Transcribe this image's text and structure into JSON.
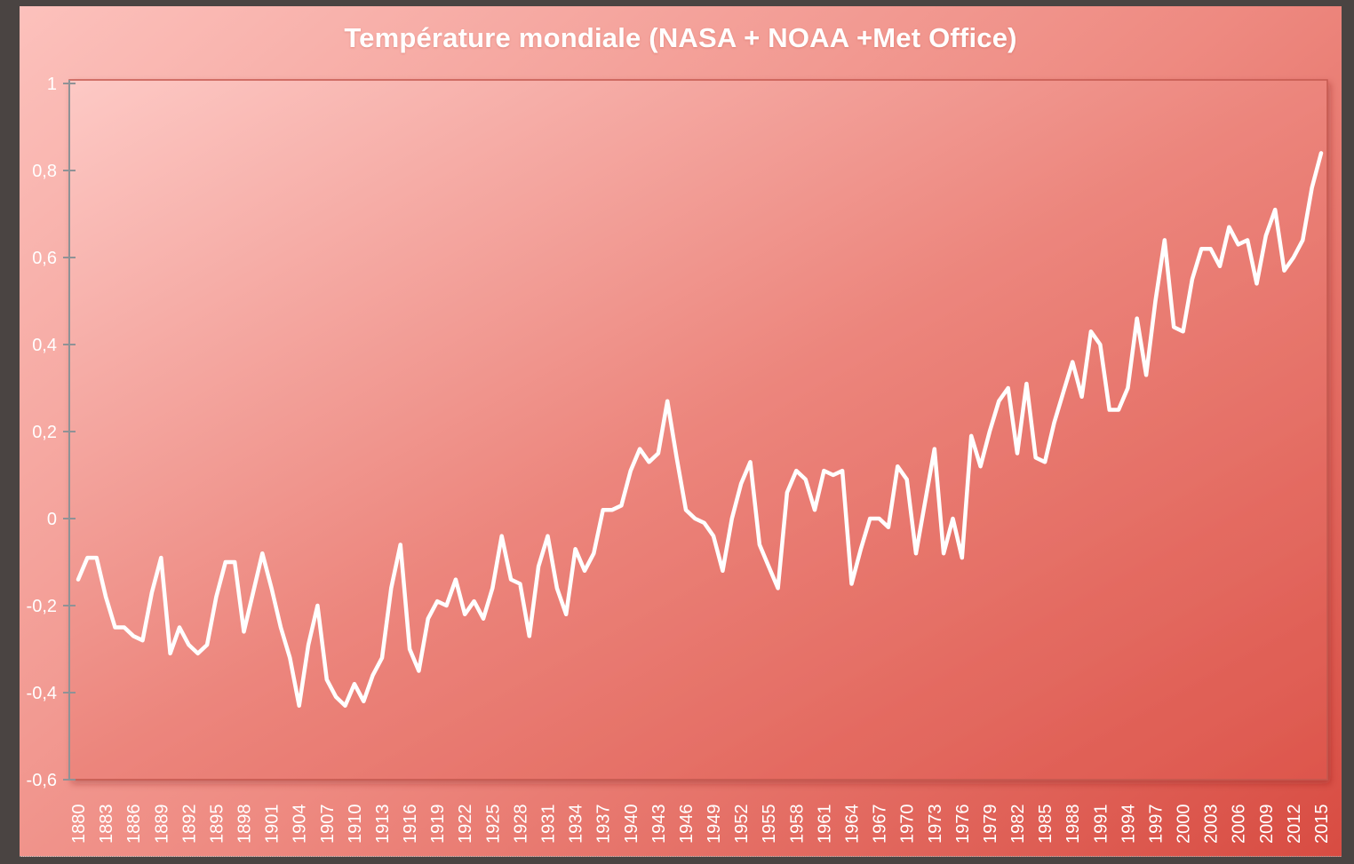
{
  "chart_data": {
    "type": "line",
    "title": "Température mondiale (NASA + NOAA +Met Office)",
    "xlabel": "",
    "ylabel": "",
    "xlim": [
      1880,
      2015
    ],
    "ylim": [
      -0.6,
      1
    ],
    "x_tick_step": 3,
    "y_tick_step": 0.2,
    "grid": false,
    "legend": "none",
    "decimal_separator": ",",
    "y_tick_labels": [
      "1",
      "0,8",
      "0,6",
      "0,4",
      "0,2",
      "0",
      "-0,2",
      "-0,4",
      "-0,6"
    ],
    "x_tick_labels": [
      "1880",
      "1883",
      "1886",
      "1889",
      "1892",
      "1895",
      "1898",
      "1901",
      "1904",
      "1907",
      "1910",
      "1913",
      "1916",
      "1919",
      "1922",
      "1925",
      "1928",
      "1931",
      "1934",
      "1937",
      "1940",
      "1943",
      "1946",
      "1949",
      "1952",
      "1955",
      "1958",
      "1961",
      "1964",
      "1967",
      "1970",
      "1973",
      "1976",
      "1979",
      "1982",
      "1985",
      "1988",
      "1991",
      "1994",
      "1997",
      "2000",
      "2003",
      "2006",
      "2009",
      "2012",
      "2015"
    ],
    "line_color": "#ffffff",
    "points": [
      [
        1880,
        -0.14
      ],
      [
        1881,
        -0.09
      ],
      [
        1882,
        -0.09
      ],
      [
        1883,
        -0.18
      ],
      [
        1884,
        -0.25
      ],
      [
        1885,
        -0.25
      ],
      [
        1886,
        -0.27
      ],
      [
        1887,
        -0.28
      ],
      [
        1888,
        -0.17
      ],
      [
        1889,
        -0.09
      ],
      [
        1890,
        -0.31
      ],
      [
        1891,
        -0.25
      ],
      [
        1892,
        -0.29
      ],
      [
        1893,
        -0.31
      ],
      [
        1894,
        -0.29
      ],
      [
        1895,
        -0.18
      ],
      [
        1896,
        -0.1
      ],
      [
        1897,
        -0.1
      ],
      [
        1898,
        -0.26
      ],
      [
        1899,
        -0.17
      ],
      [
        1900,
        -0.08
      ],
      [
        1901,
        -0.16
      ],
      [
        1902,
        -0.25
      ],
      [
        1903,
        -0.32
      ],
      [
        1904,
        -0.43
      ],
      [
        1905,
        -0.29
      ],
      [
        1906,
        -0.2
      ],
      [
        1907,
        -0.37
      ],
      [
        1908,
        -0.41
      ],
      [
        1909,
        -0.43
      ],
      [
        1910,
        -0.38
      ],
      [
        1911,
        -0.42
      ],
      [
        1912,
        -0.36
      ],
      [
        1913,
        -0.32
      ],
      [
        1914,
        -0.16
      ],
      [
        1915,
        -0.06
      ],
      [
        1916,
        -0.3
      ],
      [
        1917,
        -0.35
      ],
      [
        1918,
        -0.23
      ],
      [
        1919,
        -0.19
      ],
      [
        1920,
        -0.2
      ],
      [
        1921,
        -0.14
      ],
      [
        1922,
        -0.22
      ],
      [
        1923,
        -0.19
      ],
      [
        1924,
        -0.23
      ],
      [
        1925,
        -0.16
      ],
      [
        1926,
        -0.04
      ],
      [
        1927,
        -0.14
      ],
      [
        1928,
        -0.15
      ],
      [
        1929,
        -0.27
      ],
      [
        1930,
        -0.11
      ],
      [
        1931,
        -0.04
      ],
      [
        1932,
        -0.16
      ],
      [
        1933,
        -0.22
      ],
      [
        1934,
        -0.07
      ],
      [
        1935,
        -0.12
      ],
      [
        1936,
        -0.08
      ],
      [
        1937,
        0.02
      ],
      [
        1938,
        0.02
      ],
      [
        1939,
        0.03
      ],
      [
        1940,
        0.11
      ],
      [
        1941,
        0.16
      ],
      [
        1942,
        0.13
      ],
      [
        1943,
        0.15
      ],
      [
        1944,
        0.27
      ],
      [
        1945,
        0.14
      ],
      [
        1946,
        0.02
      ],
      [
        1947,
        0.0
      ],
      [
        1948,
        -0.01
      ],
      [
        1949,
        -0.04
      ],
      [
        1950,
        -0.12
      ],
      [
        1951,
        0.0
      ],
      [
        1952,
        0.08
      ],
      [
        1953,
        0.13
      ],
      [
        1954,
        -0.06
      ],
      [
        1955,
        -0.11
      ],
      [
        1956,
        -0.16
      ],
      [
        1957,
        0.06
      ],
      [
        1958,
        0.11
      ],
      [
        1959,
        0.09
      ],
      [
        1960,
        0.02
      ],
      [
        1961,
        0.11
      ],
      [
        1962,
        0.1
      ],
      [
        1963,
        0.11
      ],
      [
        1964,
        -0.15
      ],
      [
        1965,
        -0.07
      ],
      [
        1966,
        0.0
      ],
      [
        1967,
        0.0
      ],
      [
        1968,
        -0.02
      ],
      [
        1969,
        0.12
      ],
      [
        1970,
        0.09
      ],
      [
        1971,
        -0.08
      ],
      [
        1972,
        0.04
      ],
      [
        1973,
        0.16
      ],
      [
        1974,
        -0.08
      ],
      [
        1975,
        0.0
      ],
      [
        1976,
        -0.09
      ],
      [
        1977,
        0.19
      ],
      [
        1978,
        0.12
      ],
      [
        1979,
        0.2
      ],
      [
        1980,
        0.27
      ],
      [
        1981,
        0.3
      ],
      [
        1982,
        0.15
      ],
      [
        1983,
        0.31
      ],
      [
        1984,
        0.14
      ],
      [
        1985,
        0.13
      ],
      [
        1986,
        0.22
      ],
      [
        1987,
        0.29
      ],
      [
        1988,
        0.36
      ],
      [
        1989,
        0.28
      ],
      [
        1990,
        0.43
      ],
      [
        1991,
        0.4
      ],
      [
        1992,
        0.25
      ],
      [
        1993,
        0.25
      ],
      [
        1994,
        0.3
      ],
      [
        1995,
        0.46
      ],
      [
        1996,
        0.33
      ],
      [
        1997,
        0.5
      ],
      [
        1998,
        0.64
      ],
      [
        1999,
        0.44
      ],
      [
        2000,
        0.43
      ],
      [
        2001,
        0.55
      ],
      [
        2002,
        0.62
      ],
      [
        2003,
        0.62
      ],
      [
        2004,
        0.58
      ],
      [
        2005,
        0.67
      ],
      [
        2006,
        0.63
      ],
      [
        2007,
        0.64
      ],
      [
        2008,
        0.54
      ],
      [
        2009,
        0.65
      ],
      [
        2010,
        0.71
      ],
      [
        2011,
        0.57
      ],
      [
        2012,
        0.6
      ],
      [
        2013,
        0.64
      ],
      [
        2014,
        0.76
      ],
      [
        2015,
        0.84
      ]
    ]
  },
  "colors": {
    "frame": "#4a4442",
    "background_light": "#fcc1bc",
    "background_dark": "#d84c42",
    "plot_light": "#fdc9c5",
    "plot_dark": "#dd564c",
    "plot_border": "#c4584f",
    "axis": "#8f9296",
    "line": "#ffffff",
    "text": "#ffffff"
  }
}
